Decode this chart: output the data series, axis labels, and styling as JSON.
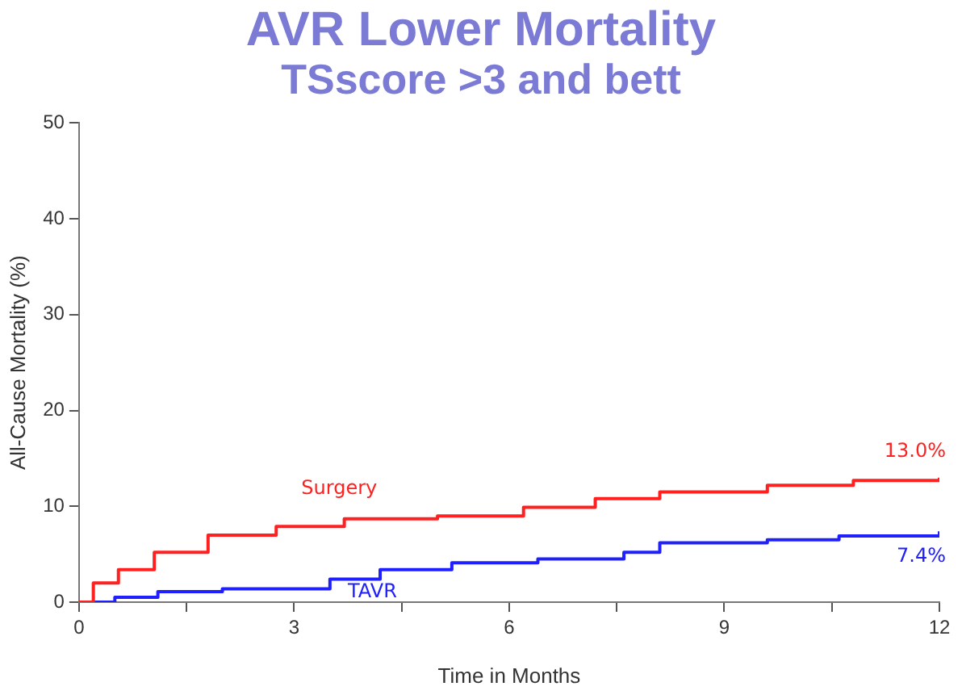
{
  "chart_data": {
    "type": "step",
    "title": "AVR Lower Mortality",
    "subtitle": "TSscore >3 and bett",
    "xlabel": "Time in Months",
    "ylabel": "All-Cause Mortality (%)",
    "xlim": [
      0,
      12
    ],
    "xticks": [
      0,
      {
        "value": 1.5,
        "label": null
      },
      3,
      {
        "value": 4.5,
        "label": null
      },
      6,
      {
        "value": 7.5,
        "label": null
      },
      9,
      {
        "value": 10.5,
        "label": null
      },
      12
    ],
    "ylim": [
      0,
      50
    ],
    "yticks": [
      0,
      10,
      20,
      30,
      40,
      50
    ],
    "grid": false,
    "legend": false,
    "marker": "none",
    "line_style": "solid",
    "series": [
      {
        "name": "Surgery",
        "color": "#ff2020",
        "x": [
          0,
          0.2,
          0.55,
          1.05,
          1.8,
          2.75,
          3.7,
          5,
          6.2,
          7.2,
          8.1,
          9.6,
          10.8,
          12
        ],
        "values": [
          0,
          2,
          3.4,
          5.2,
          7,
          7.9,
          8.7,
          9,
          9.9,
          10.8,
          11.5,
          12.2,
          12.7,
          13.0
        ]
      },
      {
        "name": "TAVR",
        "color": "#2020ff",
        "x": [
          0,
          0.5,
          1.1,
          2,
          3.5,
          4.2,
          5.2,
          6.4,
          7.6,
          8.1,
          9.6,
          10.6,
          12
        ],
        "values": [
          0,
          0.5,
          1.1,
          1.4,
          2.4,
          3.4,
          4.1,
          4.5,
          5.2,
          6.2,
          6.5,
          6.9,
          7.4
        ]
      }
    ],
    "annotations": [
      {
        "text": "13.0%",
        "x": 12,
        "y": 13.0
      },
      {
        "text": "7.4%",
        "x": 12,
        "y": 7.4
      }
    ]
  }
}
